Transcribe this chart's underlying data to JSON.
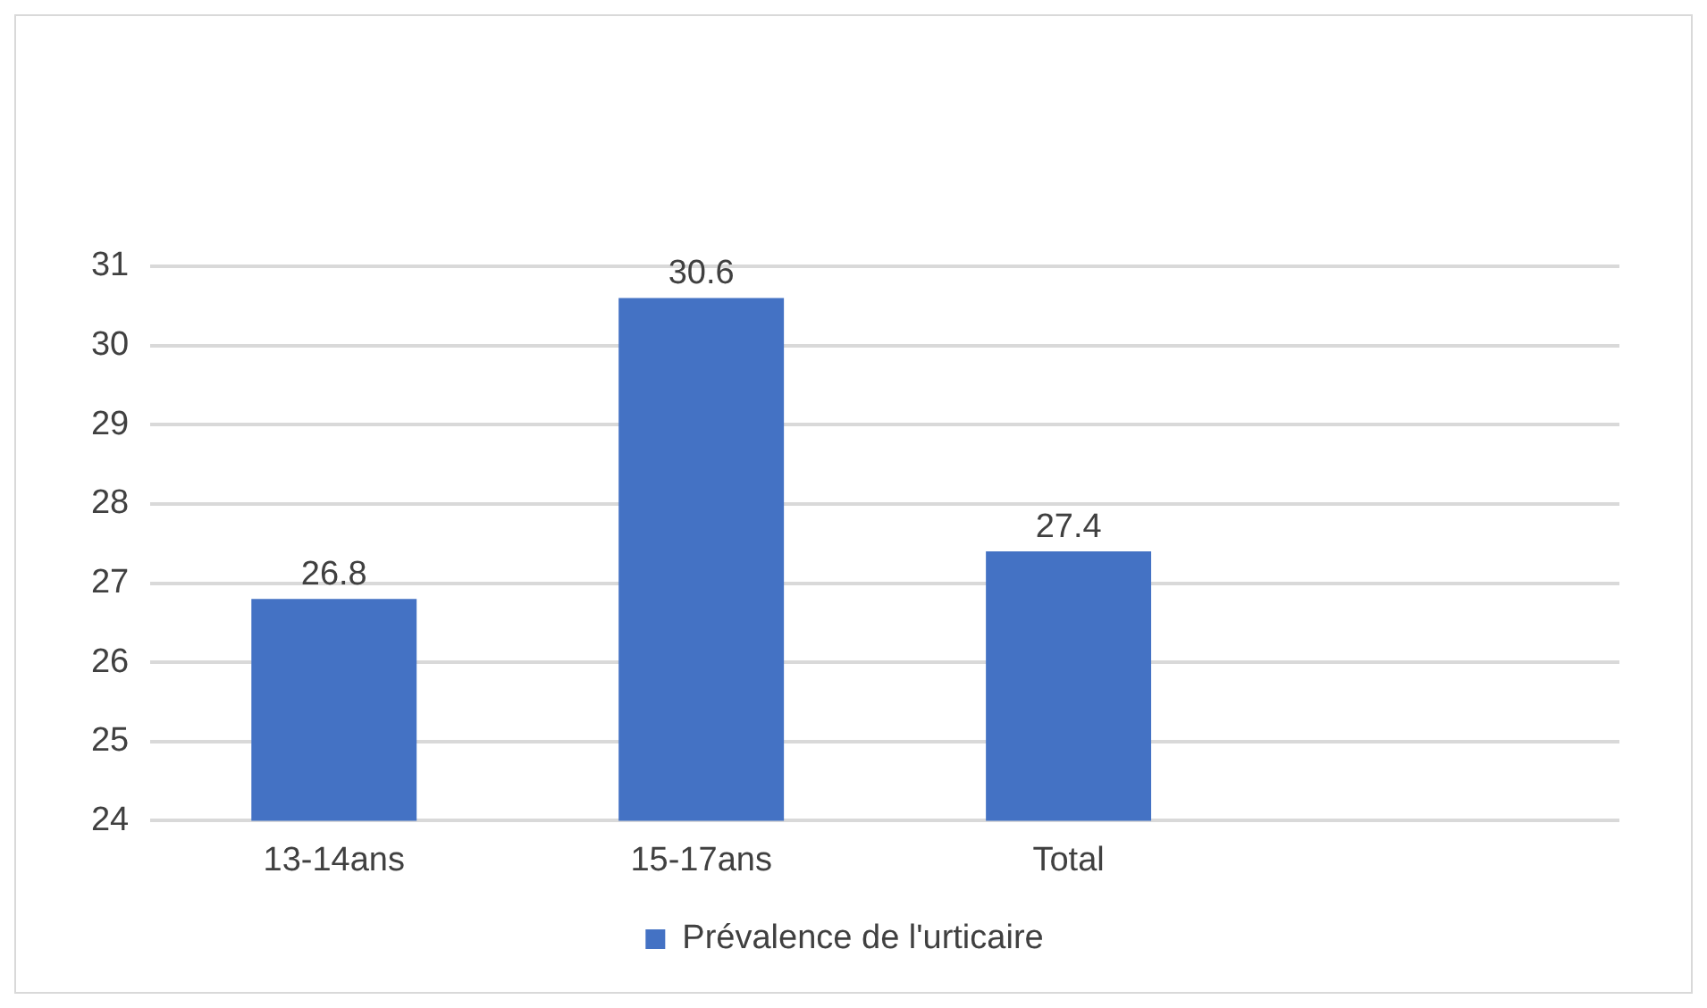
{
  "chart_data": {
    "type": "bar",
    "categories": [
      "13-14ans",
      "15-17ans",
      "Total",
      null
    ],
    "series": [
      {
        "name": "Prévalence de l'urticaire",
        "color": "#4472c4",
        "values": [
          26.8,
          30.6,
          27.4,
          null
        ]
      }
    ],
    "ylim": [
      24,
      31
    ],
    "yticks": [
      24,
      25,
      26,
      27,
      28,
      29,
      30,
      31
    ],
    "grid": "y",
    "legend": "bottom",
    "data_labels": true
  }
}
